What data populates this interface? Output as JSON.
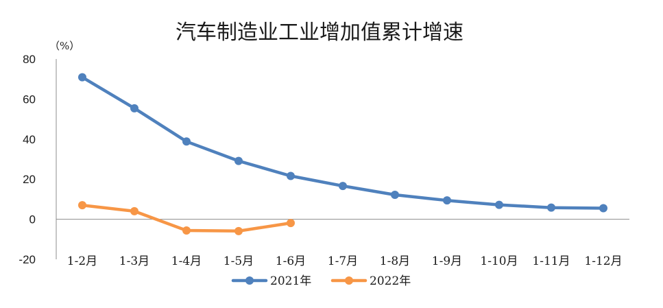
{
  "chart_data": {
    "type": "line",
    "title": "汽车制造业工业增加值累计增速",
    "unit_label": "（%）",
    "categories": [
      "1-2月",
      "1-3月",
      "1-4月",
      "1-5月",
      "1-6月",
      "1-7月",
      "1-8月",
      "1-9月",
      "1-10月",
      "1-11月",
      "1-12月"
    ],
    "ylim": [
      -20,
      80
    ],
    "yticks": [
      {
        "value": 80,
        "label": "80"
      },
      {
        "value": 60,
        "label": "60"
      },
      {
        "value": 40,
        "label": "40"
      },
      {
        "value": 20,
        "label": "20"
      },
      {
        "value": 0,
        "label": "0"
      },
      {
        "value": -20,
        "label": "-20",
        "color": "#e00000"
      }
    ],
    "grid": false,
    "legend_position": "bottom",
    "series": [
      {
        "name": "2021年",
        "color": "#4f81bd",
        "values": [
          70.9,
          55.4,
          38.8,
          29.1,
          21.6,
          16.6,
          12.2,
          9.4,
          7.2,
          5.8,
          5.5
        ]
      },
      {
        "name": "2022年",
        "color": "#f79646",
        "values": [
          7.0,
          4.0,
          -5.6,
          -5.9,
          -1.9,
          null,
          null,
          null,
          null,
          null,
          null
        ]
      }
    ]
  }
}
